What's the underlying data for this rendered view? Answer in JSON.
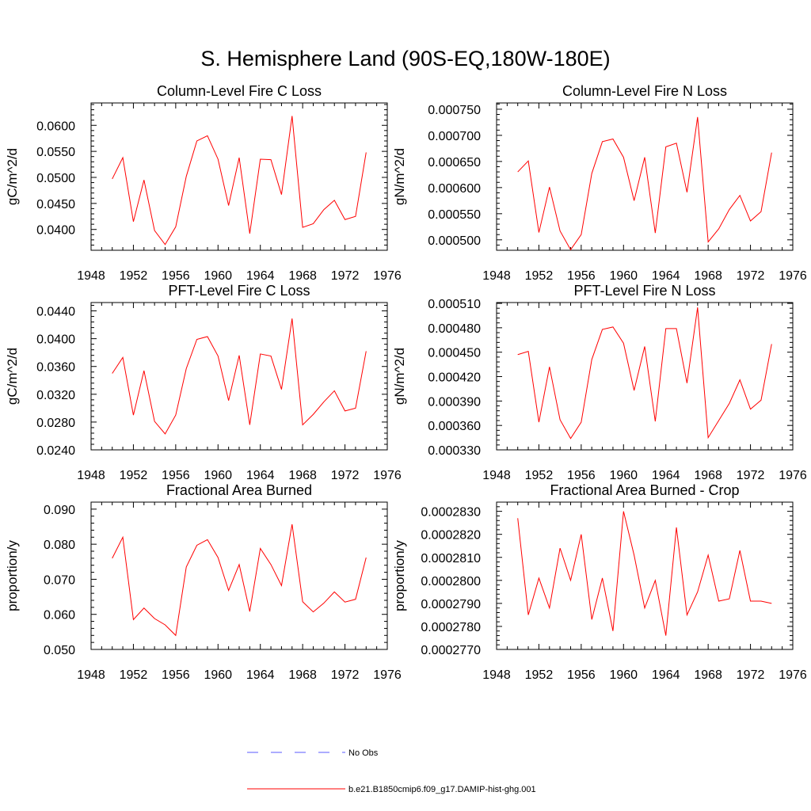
{
  "figure": {
    "title": "S. Hemisphere Land (90S-EQ,180W-180E)"
  },
  "colors": {
    "model_line": "#ff0000",
    "obs_line": "#5a5aff",
    "axis": "#000000"
  },
  "legend": {
    "obs_label": "No Obs",
    "model_label": "b.e21.B1850cmip6.f09_g17.DAMIP-hist-ghg.001"
  },
  "chart_data": [
    {
      "type": "line",
      "title": "Column-Level Fire C Loss",
      "xlabel": "",
      "ylabel": "gC/m^2/d",
      "xlim": [
        1948,
        1976
      ],
      "ylim": [
        0.036,
        0.0643
      ],
      "xticks": [
        "1948",
        "1952",
        "1956",
        "1960",
        "1964",
        "1968",
        "1972",
        "1976"
      ],
      "yticks": [
        "0.0400",
        "0.0450",
        "0.0500",
        "0.0550",
        "0.0600"
      ],
      "x": [
        1950,
        1951,
        1952,
        1953,
        1954,
        1955,
        1956,
        1957,
        1958,
        1959,
        1960,
        1961,
        1962,
        1963,
        1964,
        1965,
        1966,
        1967,
        1968,
        1969,
        1970,
        1971,
        1972,
        1973,
        1974
      ],
      "series": [
        {
          "values": [
            0.0497,
            0.0538,
            0.0415,
            0.0495,
            0.0398,
            0.0371,
            0.0405,
            0.0502,
            0.057,
            0.058,
            0.0535,
            0.0446,
            0.0538,
            0.0392,
            0.0535,
            0.0534,
            0.0467,
            0.0618,
            0.0404,
            0.0411,
            0.0438,
            0.0456,
            0.0419,
            0.0425,
            0.0548
          ]
        }
      ]
    },
    {
      "type": "line",
      "title": "Column-Level Fire N Loss",
      "xlabel": "",
      "ylabel": "gN/m^2/d",
      "xlim": [
        1948,
        1976
      ],
      "ylim": [
        0.00048,
        0.000762
      ],
      "xticks": [
        "1948",
        "1952",
        "1956",
        "1960",
        "1964",
        "1968",
        "1972",
        "1976"
      ],
      "yticks": [
        "0.000500",
        "0.000550",
        "0.000600",
        "0.000650",
        "0.000700",
        "0.000750"
      ],
      "x": [
        1950,
        1951,
        1952,
        1953,
        1954,
        1955,
        1956,
        1957,
        1958,
        1959,
        1960,
        1961,
        1962,
        1963,
        1964,
        1965,
        1966,
        1967,
        1968,
        1969,
        1970,
        1971,
        1972,
        1973,
        1974
      ],
      "series": [
        {
          "values": [
            0.00063,
            0.000651,
            0.000514,
            0.000601,
            0.000517,
            0.000481,
            0.00051,
            0.000627,
            0.000688,
            0.000693,
            0.000658,
            0.000575,
            0.000658,
            0.000513,
            0.000678,
            0.000685,
            0.000591,
            0.000735,
            0.000496,
            0.000521,
            0.000558,
            0.000585,
            0.000536,
            0.000554,
            0.000667
          ]
        }
      ]
    },
    {
      "type": "line",
      "title": "PFT-Level Fire C Loss",
      "xlabel": "",
      "ylabel": "gC/m^2/d",
      "xlim": [
        1948,
        1976
      ],
      "ylim": [
        0.024,
        0.0452
      ],
      "xticks": [
        "1948",
        "1952",
        "1956",
        "1960",
        "1964",
        "1968",
        "1972",
        "1976"
      ],
      "yticks": [
        "0.0240",
        "0.0280",
        "0.0320",
        "0.0360",
        "0.0400",
        "0.0440"
      ],
      "x": [
        1950,
        1951,
        1952,
        1953,
        1954,
        1955,
        1956,
        1957,
        1958,
        1959,
        1960,
        1961,
        1962,
        1963,
        1964,
        1965,
        1966,
        1967,
        1968,
        1969,
        1970,
        1971,
        1972,
        1973,
        1974
      ],
      "series": [
        {
          "values": [
            0.035,
            0.0373,
            0.029,
            0.0354,
            0.0281,
            0.0263,
            0.029,
            0.0357,
            0.0399,
            0.0403,
            0.0375,
            0.0311,
            0.0376,
            0.0276,
            0.0378,
            0.0375,
            0.0327,
            0.0429,
            0.0276,
            0.0291,
            0.0309,
            0.0325,
            0.0296,
            0.03,
            0.0382
          ]
        }
      ]
    },
    {
      "type": "line",
      "title": "PFT-Level Fire N Loss",
      "xlabel": "",
      "ylabel": "gN/m^2/d",
      "xlim": [
        1948,
        1976
      ],
      "ylim": [
        0.00033,
        0.000511
      ],
      "xticks": [
        "1948",
        "1952",
        "1956",
        "1960",
        "1964",
        "1968",
        "1972",
        "1976"
      ],
      "yticks": [
        "0.000330",
        "0.000360",
        "0.000390",
        "0.000420",
        "0.000450",
        "0.000480",
        "0.000510"
      ],
      "x": [
        1950,
        1951,
        1952,
        1953,
        1954,
        1955,
        1956,
        1957,
        1958,
        1959,
        1960,
        1961,
        1962,
        1963,
        1964,
        1965,
        1966,
        1967,
        1968,
        1969,
        1970,
        1971,
        1972,
        1973,
        1974
      ],
      "series": [
        {
          "values": [
            0.000447,
            0.000451,
            0.000364,
            0.000432,
            0.000367,
            0.000344,
            0.000364,
            0.000441,
            0.000478,
            0.000481,
            0.000461,
            0.000403,
            0.000457,
            0.000365,
            0.000479,
            0.000479,
            0.000412,
            0.000505,
            0.000345,
            0.000366,
            0.000387,
            0.000416,
            0.00038,
            0.000391,
            0.00046
          ]
        }
      ]
    },
    {
      "type": "line",
      "title": "Fractional Area Burned",
      "xlabel": "",
      "ylabel": "proportion/y",
      "xlim": [
        1948,
        1976
      ],
      "ylim": [
        0.05,
        0.092
      ],
      "xticks": [
        "1948",
        "1952",
        "1956",
        "1960",
        "1964",
        "1968",
        "1972",
        "1976"
      ],
      "yticks": [
        "0.050",
        "0.060",
        "0.070",
        "0.080",
        "0.090"
      ],
      "x": [
        1950,
        1951,
        1952,
        1953,
        1954,
        1955,
        1956,
        1957,
        1958,
        1959,
        1960,
        1961,
        1962,
        1963,
        1964,
        1965,
        1966,
        1967,
        1968,
        1969,
        1970,
        1971,
        1972,
        1973,
        1974
      ],
      "series": [
        {
          "values": [
            0.076,
            0.082,
            0.0585,
            0.0618,
            0.0588,
            0.057,
            0.054,
            0.0735,
            0.0797,
            0.0813,
            0.0762,
            0.0668,
            0.0742,
            0.0608,
            0.0788,
            0.0742,
            0.0682,
            0.0857,
            0.0636,
            0.0607,
            0.0632,
            0.0664,
            0.0635,
            0.0643,
            0.0762
          ]
        }
      ]
    },
    {
      "type": "line",
      "title": "Fractional Area Burned - Crop",
      "xlabel": "",
      "ylabel": "proportion/y",
      "xlim": [
        1948,
        1976
      ],
      "ylim": [
        0.000277,
        0.0002834
      ],
      "xticks": [
        "1948",
        "1952",
        "1956",
        "1960",
        "1964",
        "1968",
        "1972",
        "1976"
      ],
      "yticks": [
        "0.0002770",
        "0.0002780",
        "0.0002790",
        "0.0002800",
        "0.0002810",
        "0.0002820",
        "0.0002830"
      ],
      "x": [
        1950,
        1951,
        1952,
        1953,
        1954,
        1955,
        1956,
        1957,
        1958,
        1959,
        1960,
        1961,
        1962,
        1963,
        1964,
        1965,
        1966,
        1967,
        1968,
        1969,
        1970,
        1971,
        1972,
        1973,
        1974
      ],
      "series": [
        {
          "values": [
            0.0002827,
            0.0002785,
            0.0002801,
            0.0002788,
            0.0002814,
            0.00028,
            0.000282,
            0.0002783,
            0.0002801,
            0.0002778,
            0.000283,
            0.0002811,
            0.0002788,
            0.00028,
            0.0002776,
            0.0002823,
            0.0002785,
            0.0002795,
            0.0002811,
            0.0002791,
            0.0002792,
            0.0002813,
            0.0002791,
            0.0002791,
            0.000279
          ]
        }
      ]
    }
  ]
}
